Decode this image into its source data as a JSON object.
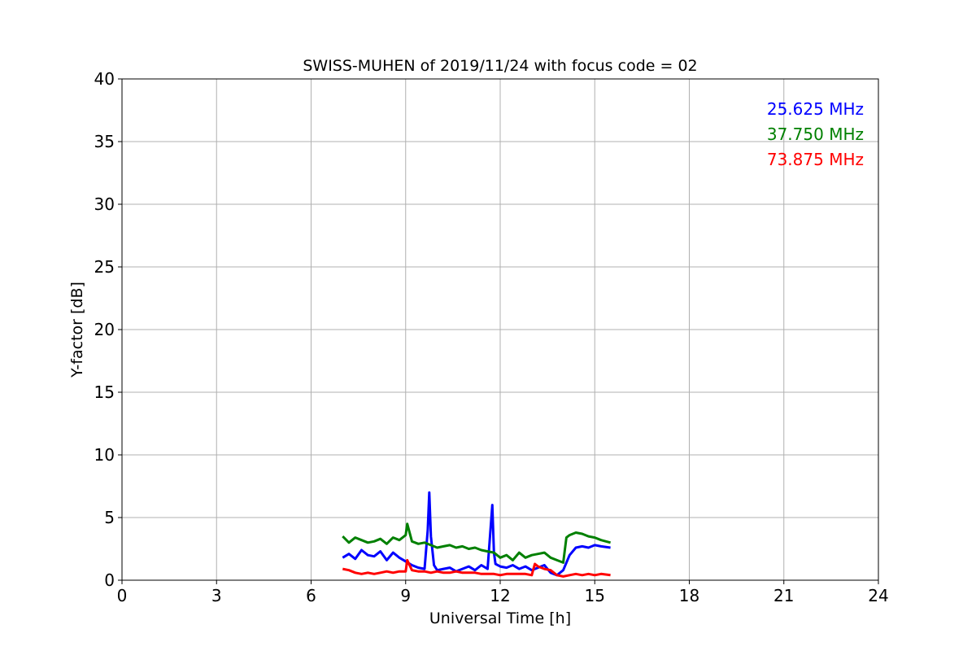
{
  "chart_data": {
    "type": "line",
    "title": "SWISS-MUHEN of 2019/11/24 with focus code = 02",
    "xlabel": "Universal Time [h]",
    "ylabel": "Y-factor [dB]",
    "xlim": [
      0,
      24
    ],
    "ylim": [
      0,
      40
    ],
    "xticks": [
      0,
      3,
      6,
      9,
      12,
      15,
      18,
      21,
      24
    ],
    "yticks": [
      0,
      5,
      10,
      15,
      20,
      25,
      30,
      35,
      40
    ],
    "grid": true,
    "legend_placement": "top-right",
    "series": [
      {
        "name": "25.625 MHz",
        "color": "#0000ff",
        "x": [
          7.0,
          7.2,
          7.4,
          7.6,
          7.8,
          8.0,
          8.2,
          8.4,
          8.6,
          8.8,
          9.0,
          9.2,
          9.4,
          9.6,
          9.7,
          9.75,
          9.8,
          9.9,
          10.0,
          10.2,
          10.4,
          10.6,
          10.8,
          11.0,
          11.2,
          11.4,
          11.6,
          11.75,
          11.8,
          11.85,
          12.0,
          12.2,
          12.4,
          12.6,
          12.8,
          13.0,
          13.2,
          13.4,
          13.6,
          13.8,
          14.0,
          14.2,
          14.4,
          14.6,
          14.8,
          15.0,
          15.2,
          15.5
        ],
        "y": [
          1.8,
          2.1,
          1.7,
          2.4,
          2.0,
          1.9,
          2.3,
          1.6,
          2.2,
          1.8,
          1.5,
          1.2,
          1.0,
          0.9,
          4.0,
          7.0,
          3.5,
          1.2,
          0.8,
          0.9,
          1.0,
          0.7,
          0.9,
          1.1,
          0.8,
          1.2,
          0.9,
          6.0,
          2.2,
          1.3,
          1.1,
          1.0,
          1.2,
          0.9,
          1.1,
          0.8,
          1.0,
          1.2,
          0.6,
          0.4,
          0.8,
          2.0,
          2.6,
          2.7,
          2.6,
          2.8,
          2.7,
          2.6
        ]
      },
      {
        "name": "37.750 MHz",
        "color": "#008000",
        "x": [
          7.0,
          7.2,
          7.4,
          7.6,
          7.8,
          8.0,
          8.2,
          8.4,
          8.6,
          8.8,
          9.0,
          9.05,
          9.2,
          9.4,
          9.6,
          9.8,
          10.0,
          10.2,
          10.4,
          10.6,
          10.8,
          11.0,
          11.2,
          11.4,
          11.6,
          11.8,
          12.0,
          12.2,
          12.4,
          12.6,
          12.8,
          13.0,
          13.2,
          13.4,
          13.6,
          13.8,
          14.0,
          14.1,
          14.2,
          14.4,
          14.6,
          14.8,
          15.0,
          15.2,
          15.5
        ],
        "y": [
          3.5,
          3.0,
          3.4,
          3.2,
          3.0,
          3.1,
          3.3,
          2.9,
          3.4,
          3.2,
          3.6,
          4.5,
          3.1,
          2.9,
          3.0,
          2.8,
          2.6,
          2.7,
          2.8,
          2.6,
          2.7,
          2.5,
          2.6,
          2.4,
          2.3,
          2.2,
          1.8,
          2.0,
          1.6,
          2.2,
          1.8,
          2.0,
          2.1,
          2.2,
          1.8,
          1.6,
          1.4,
          3.4,
          3.6,
          3.8,
          3.7,
          3.5,
          3.4,
          3.2,
          3.0
        ]
      },
      {
        "name": "73.875 MHz",
        "color": "#ff0000",
        "x": [
          7.0,
          7.2,
          7.4,
          7.6,
          7.8,
          8.0,
          8.2,
          8.4,
          8.6,
          8.8,
          9.0,
          9.05,
          9.2,
          9.4,
          9.6,
          9.8,
          10.0,
          10.2,
          10.4,
          10.6,
          10.8,
          11.0,
          11.2,
          11.4,
          11.6,
          11.8,
          12.0,
          12.2,
          12.4,
          12.6,
          12.8,
          13.0,
          13.1,
          13.2,
          13.4,
          13.6,
          13.8,
          14.0,
          14.2,
          14.4,
          14.6,
          14.8,
          15.0,
          15.2,
          15.5
        ],
        "y": [
          0.9,
          0.8,
          0.6,
          0.5,
          0.6,
          0.5,
          0.6,
          0.7,
          0.6,
          0.7,
          0.7,
          1.6,
          0.8,
          0.7,
          0.7,
          0.6,
          0.7,
          0.6,
          0.6,
          0.7,
          0.6,
          0.6,
          0.6,
          0.5,
          0.5,
          0.5,
          0.4,
          0.5,
          0.5,
          0.5,
          0.5,
          0.4,
          1.3,
          1.1,
          0.9,
          0.8,
          0.4,
          0.3,
          0.4,
          0.5,
          0.4,
          0.5,
          0.4,
          0.5,
          0.4
        ]
      }
    ]
  }
}
